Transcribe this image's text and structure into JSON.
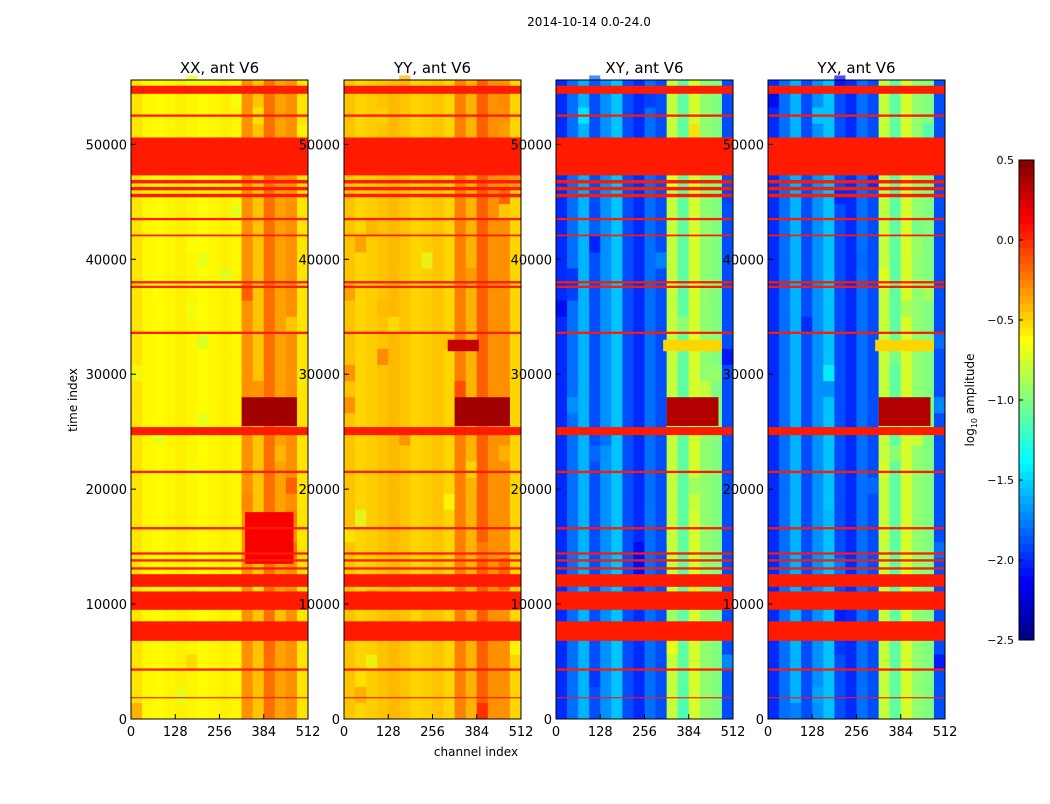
{
  "chart_data": {
    "type": "heatmap",
    "title": "2014-10-14 0.0-24.0",
    "xlabel": "channel index",
    "ylabel": "time index",
    "xlim": [
      0,
      512
    ],
    "ylim": [
      0,
      55600
    ],
    "xticks": [
      "0",
      "128",
      "256",
      "384",
      "512"
    ],
    "xtick_values": [
      0,
      128,
      256,
      384,
      512
    ],
    "yticks": [
      "0",
      "10000",
      "20000",
      "30000",
      "40000",
      "50000"
    ],
    "ytick_values": [
      0,
      10000,
      20000,
      30000,
      40000,
      50000
    ],
    "colorbar": {
      "label_main": "log",
      "label_sub": "10",
      "label_rest": " amplitude",
      "range": [
        -2.5,
        0.5
      ],
      "ticks": [
        "0.5",
        "0.0",
        "−0.5",
        "−1.0",
        "−1.5",
        "−2.0",
        "−2.5"
      ],
      "tick_values": [
        0.5,
        0.0,
        -0.5,
        -1.0,
        -1.5,
        -2.0,
        -2.5
      ],
      "colormap": "jet"
    },
    "flag_value": 0.05,
    "flagged_time_ranges": [
      [
        47300,
        50600
      ],
      [
        9500,
        11100
      ],
      [
        6800,
        8500
      ],
      [
        11500,
        12600
      ],
      [
        24700,
        25400
      ],
      [
        54400,
        54900
      ],
      [
        4200,
        4400
      ],
      [
        13000,
        13200
      ],
      [
        13700,
        13900
      ],
      [
        14300,
        14500
      ],
      [
        16500,
        16700
      ],
      [
        21400,
        21600
      ],
      [
        33500,
        33700
      ],
      [
        37500,
        37700
      ],
      [
        37900,
        38100
      ],
      [
        42000,
        42150
      ],
      [
        43400,
        43600
      ],
      [
        45400,
        45700
      ],
      [
        46000,
        46300
      ],
      [
        46600,
        46900
      ],
      [
        52400,
        52600
      ],
      [
        54900,
        55100
      ],
      [
        1800,
        1900
      ]
    ],
    "panels": [
      {
        "title": "XX, ant V6",
        "channel_profile": [
          -0.55,
          -0.6,
          -0.62,
          -0.6,
          -0.58,
          -0.6,
          -0.62,
          -0.6,
          -0.58,
          -0.6,
          -0.3,
          -0.45,
          -0.2,
          -0.35,
          -0.3,
          -0.55
        ],
        "events": [
          {
            "t": [
              25500,
              28000
            ],
            "ch": [
              320,
              480
            ],
            "v": 0.4
          },
          {
            "t": [
              13500,
              18000
            ],
            "ch": [
              330,
              470
            ],
            "v": 0.15
          }
        ]
      },
      {
        "title": "YY, ant V6",
        "channel_profile": [
          -0.45,
          -0.5,
          -0.48,
          -0.45,
          -0.42,
          -0.45,
          -0.5,
          -0.48,
          -0.45,
          -0.5,
          -0.25,
          -0.4,
          -0.15,
          -0.3,
          -0.3,
          -0.5
        ],
        "events": [
          {
            "t": [
              25500,
              28000
            ],
            "ch": [
              320,
              480
            ],
            "v": 0.4
          },
          {
            "t": [
              32000,
              33000
            ],
            "ch": [
              300,
              390
            ],
            "v": 0.3
          }
        ]
      },
      {
        "title": "XY, ant V6",
        "channel_profile": [
          -2.0,
          -1.8,
          -1.6,
          -1.9,
          -1.7,
          -1.55,
          -1.9,
          -2.0,
          -1.8,
          -1.9,
          -0.8,
          -1.1,
          -0.75,
          -0.95,
          -1.0,
          -1.9
        ],
        "events": [
          {
            "t": [
              25500,
              28000
            ],
            "ch": [
              320,
              470
            ],
            "v": 0.35
          },
          {
            "t": [
              32000,
              33000
            ],
            "ch": [
              310,
              480
            ],
            "v": -0.5
          }
        ]
      },
      {
        "title": "YX, ant V6",
        "channel_profile": [
          -2.0,
          -1.8,
          -1.6,
          -1.9,
          -1.7,
          -1.55,
          -1.9,
          -2.0,
          -1.8,
          -1.9,
          -0.8,
          -1.1,
          -0.75,
          -0.95,
          -1.0,
          -1.9
        ],
        "events": [
          {
            "t": [
              25500,
              28000
            ],
            "ch": [
              320,
              470
            ],
            "v": 0.35
          },
          {
            "t": [
              32000,
              33000
            ],
            "ch": [
              310,
              480
            ],
            "v": -0.5
          }
        ]
      }
    ]
  }
}
